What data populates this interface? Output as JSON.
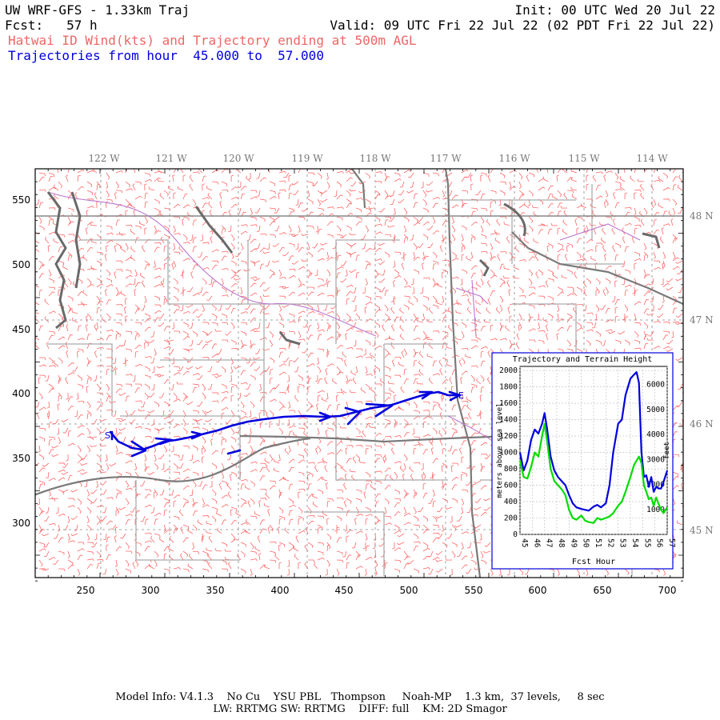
{
  "header": {
    "model": "UW WRF-GFS - 1.33km Traj",
    "init": "Init: 00 UTC Wed 20 Jul 22",
    "fcst": "Fcst:   57 h",
    "valid": "Valid: 09 UTC Fri 22 Jul 22 (02 PDT Fri 22 Jul 22)",
    "subtitle_red": "Hatwai ID Wind(kts) and Trajectory ending at 500m AGL",
    "subtitle_blue": "Trajectories from hour  45.000 to  57.000"
  },
  "map": {
    "lon_labels": [
      "122 W",
      "121 W",
      "120 W",
      "119 W",
      "118 W",
      "117 W",
      "116 W",
      "115 W",
      "114 W"
    ],
    "lat_labels": [
      "48 N",
      "47 N",
      "46 N",
      "45 N"
    ],
    "x_ticks": [
      "250",
      "300",
      "350",
      "400",
      "450",
      "500",
      "550",
      "600",
      "650",
      "700"
    ],
    "y_ticks": [
      "550",
      "500",
      "450",
      "400",
      "350",
      "300"
    ],
    "trajectory_start_label": "S",
    "trajectory_end_label": "E",
    "colors": {
      "barbs": "#ff6666",
      "trajectory": "#0000dd",
      "borders": "#999999",
      "coast": "#707070",
      "rivers": "#aa66cc"
    }
  },
  "inset": {
    "title": "Trajectory and Terrain Height",
    "ylabel_left": "meters above sea level",
    "ylabel_right": "feet",
    "xlabel": "Fcst Hour",
    "left_ticks": [
      "0",
      "200",
      "400",
      "600",
      "800",
      "1000",
      "1200",
      "1400",
      "1600",
      "1800",
      "2000"
    ],
    "right_ticks": [
      "1000",
      "2000",
      "3000",
      "4000",
      "5000",
      "6000"
    ],
    "x_ticks": [
      "45",
      "46",
      "47",
      "48",
      "49",
      "50",
      "51",
      "52",
      "53",
      "54",
      "55",
      "56",
      "57"
    ]
  },
  "chart_data": {
    "type": "line",
    "title": "Trajectory and Terrain Height",
    "xlabel": "Fcst Hour",
    "ylabel": "meters above sea level",
    "xlim": [
      45,
      57
    ],
    "ylim": [
      0,
      2050
    ],
    "series": [
      {
        "color": "#0000dd",
        "x": [
          45,
          45.3,
          45.6,
          45.9,
          46.2,
          46.5,
          46.8,
          47.0,
          47.2,
          47.5,
          47.8,
          48.1,
          48.4,
          48.7,
          49.0,
          49.3,
          49.6,
          50.0,
          50.3,
          50.6,
          51.0,
          51.3,
          51.6,
          52.0,
          52.3,
          52.6,
          53.0,
          53.3,
          53.6,
          54.0,
          54.3,
          54.5,
          54.7,
          54.9,
          55.1,
          55.3,
          55.5,
          55.7,
          55.9,
          56.1,
          56.3,
          56.5,
          56.7,
          57.0
        ],
        "y": [
          1000,
          780,
          900,
          1150,
          1280,
          1230,
          1350,
          1480,
          1300,
          950,
          780,
          700,
          650,
          600,
          480,
          380,
          330,
          310,
          300,
          290,
          340,
          360,
          330,
          380,
          600,
          1000,
          1350,
          1400,
          1700,
          1900,
          1950,
          1980,
          1850,
          1000,
          700,
          720,
          580,
          700,
          520,
          580,
          560,
          560,
          640,
          780
        ]
      },
      {
        "color": "#00dd00",
        "x": [
          45,
          45.3,
          45.6,
          45.9,
          46.2,
          46.5,
          46.8,
          47.0,
          47.2,
          47.5,
          47.8,
          48.1,
          48.4,
          48.7,
          49.0,
          49.3,
          49.6,
          50.0,
          50.3,
          50.6,
          51.0,
          51.3,
          51.6,
          52.0,
          52.3,
          52.6,
          53.0,
          53.3,
          53.6,
          54.0,
          54.3,
          54.5,
          54.7,
          54.9,
          55.1,
          55.3,
          55.5,
          55.7,
          55.9,
          56.1,
          56.3,
          56.5,
          56.7,
          57.0
        ],
        "y": [
          900,
          700,
          680,
          820,
          1000,
          950,
          1200,
          1350,
          1150,
          800,
          650,
          600,
          550,
          480,
          300,
          200,
          180,
          230,
          170,
          150,
          140,
          200,
          180,
          200,
          220,
          260,
          350,
          400,
          520,
          700,
          850,
          900,
          950,
          870,
          600,
          520,
          430,
          450,
          350,
          450,
          370,
          300,
          260,
          330
        ]
      }
    ]
  },
  "footer": {
    "line1": "Model Info: V4.1.3    No Cu    YSU PBL   Thompson     Noah-MP    1.3 km,  37 levels,     8 sec",
    "line2": "LW: RRTMG SW: RRTMG    DIFF: full    KM: 2D Smagor"
  }
}
